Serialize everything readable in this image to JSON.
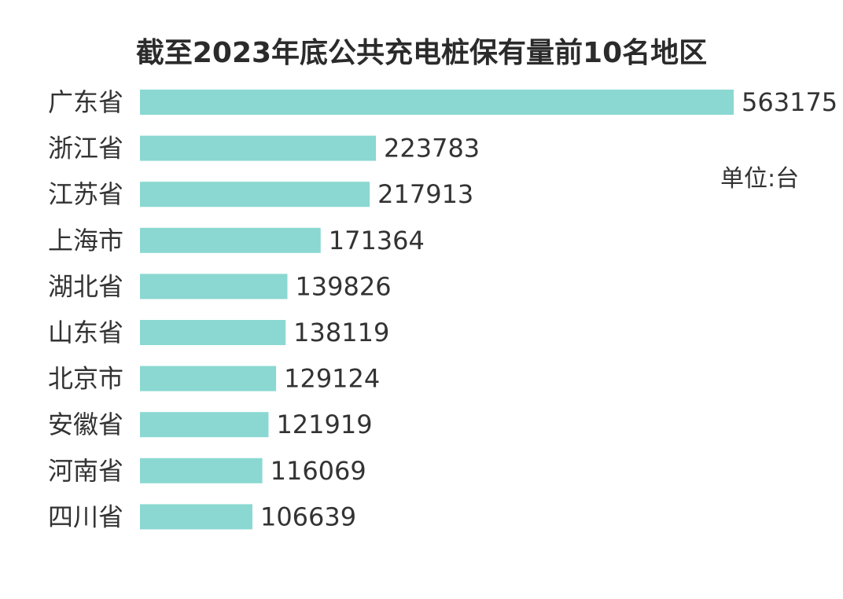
{
  "chart_data": {
    "type": "bar",
    "orientation": "horizontal",
    "title": "截至2023年底公共充电桩保有量前10名地区",
    "unit": "单位:台",
    "categories": [
      "广东省",
      "浙江省",
      "江苏省",
      "上海市",
      "湖北省",
      "山东省",
      "北京市",
      "安徽省",
      "河南省",
      "四川省"
    ],
    "values": [
      563175,
      223783,
      217913,
      171364,
      139826,
      138119,
      129124,
      121919,
      116069,
      106639
    ],
    "value_labels": [
      "563175",
      "223783",
      "217913",
      "171364",
      "139826",
      "138119",
      "129124",
      "121919",
      "116069",
      "106639"
    ],
    "xlim": [
      0,
      563175
    ],
    "grid": false,
    "legend": "none",
    "colors": {
      "bar": "#8ad8d1",
      "text": "#333333"
    }
  }
}
